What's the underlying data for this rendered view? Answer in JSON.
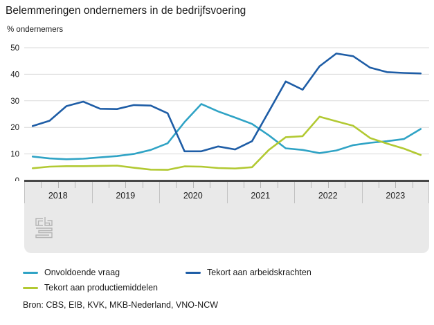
{
  "header": {
    "title": "Belemmeringen ondernemers in de bedrijfsvoering",
    "unit_label": "% ondernemers"
  },
  "source": {
    "label": "Bron: CBS, EIB, KVK, MKB-Nederland, VNO-NCW"
  },
  "colors": {
    "light_blue": "#2FA3C5",
    "dark_blue": "#1E5DA6",
    "green": "#B2C932",
    "gridline": "#d9d9d9",
    "axis": "#474747",
    "panel": "#e9e9e9",
    "logo_gray": "#b4b4b4"
  },
  "chart_data": {
    "type": "line",
    "title": "Belemmeringen ondernemers in de bedrijfsvoering",
    "ylabel": "% ondernemers",
    "xlabel": "",
    "ylim": [
      0,
      50
    ],
    "yticks": [
      0,
      10,
      20,
      30,
      40,
      50
    ],
    "grid": true,
    "legend_position": "bottom",
    "x_frequency": "quarterly",
    "x_years": [
      "2018",
      "2019",
      "2020",
      "2021",
      "2022",
      "2023"
    ],
    "series": [
      {
        "name": "Onvoldoende vraag",
        "color": "#2FA3C5",
        "values": [
          9.0,
          8.3,
          8.0,
          8.2,
          8.7,
          9.2,
          10.0,
          11.5,
          14.0,
          22.0,
          28.8,
          26.0,
          23.7,
          21.3,
          17.0,
          12.1,
          11.5,
          10.3,
          11.3,
          13.3,
          14.2,
          14.8,
          15.6,
          19.4
        ]
      },
      {
        "name": "Tekort aan arbeidskrachten",
        "color": "#1E5DA6",
        "values": [
          20.5,
          22.5,
          28.0,
          29.7,
          27.0,
          26.9,
          28.4,
          28.2,
          25.3,
          11.0,
          11.0,
          12.8,
          11.7,
          14.8,
          26.0,
          37.3,
          34.2,
          43.0,
          47.8,
          46.8,
          42.5,
          40.8,
          40.5,
          40.3
        ]
      },
      {
        "name": "Tekort aan productiemiddelen",
        "color": "#B2C932",
        "values": [
          4.6,
          5.2,
          5.4,
          5.4,
          5.5,
          5.6,
          4.8,
          4.1,
          4.0,
          5.3,
          5.2,
          4.7,
          4.5,
          5.0,
          11.5,
          16.3,
          16.7,
          24.0,
          22.3,
          20.6,
          16.0,
          13.9,
          12.0,
          9.6
        ]
      }
    ]
  }
}
